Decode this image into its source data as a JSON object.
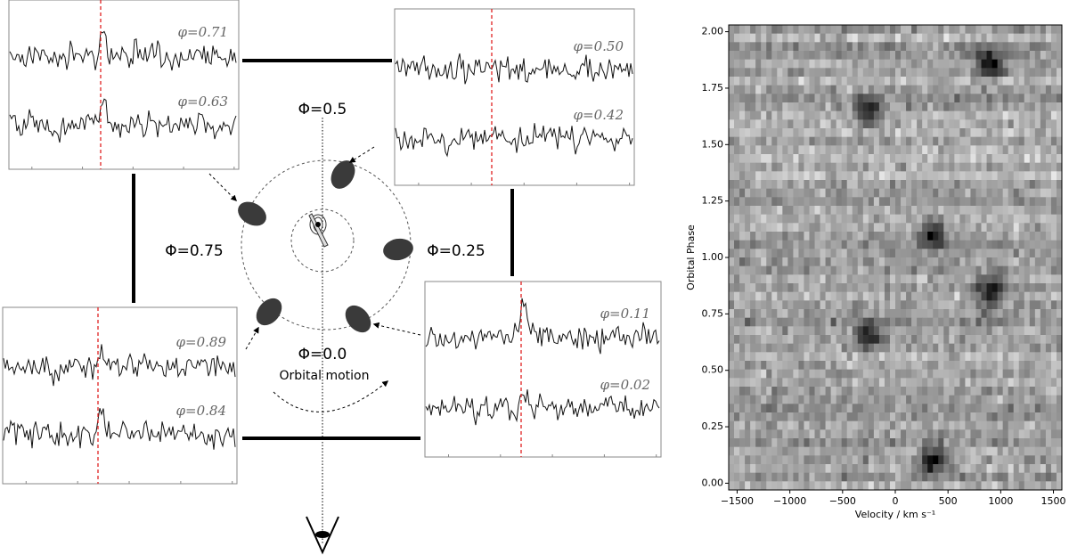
{
  "diagram": {
    "phase_labels": [
      "Φ=0.5",
      "Φ=0.75",
      "Φ=0.25",
      "Φ=0.0"
    ],
    "motion_label": "Orbital motion",
    "panels": [
      {
        "labels": [
          "φ=0.71",
          "φ=0.63"
        ]
      },
      {
        "labels": [
          "φ=0.50",
          "φ=0.42"
        ]
      },
      {
        "labels": [
          "φ=0.89",
          "φ=0.84"
        ]
      },
      {
        "labels": [
          "φ=0.11",
          "φ=0.02"
        ]
      }
    ]
  },
  "trailed_spectrum": {
    "xlabel": "Velocity / km s⁻¹",
    "ylabel": "Orbital Phase",
    "xlim": [
      -1580,
      1580
    ],
    "ylim": [
      -0.03,
      2.03
    ],
    "xticks": [
      {
        "value": -1500,
        "label": "−1500"
      },
      {
        "value": -1000,
        "label": "−1000"
      },
      {
        "value": -500,
        "label": "−500"
      },
      0,
      500,
      1000,
      1500
    ],
    "yticks": [
      {
        "value": 0,
        "label": "0.00"
      },
      {
        "value": 0.25,
        "label": "0.25"
      },
      {
        "value": 0.5,
        "label": "0.50"
      },
      {
        "value": 0.75,
        "label": "0.75"
      },
      {
        "value": 1,
        "label": "1.00"
      },
      {
        "value": 1.25,
        "label": "1.25"
      },
      {
        "value": 1.5,
        "label": "1.50"
      },
      {
        "value": 1.75,
        "label": "1.75"
      },
      {
        "value": 2,
        "label": "2.00"
      }
    ]
  }
}
